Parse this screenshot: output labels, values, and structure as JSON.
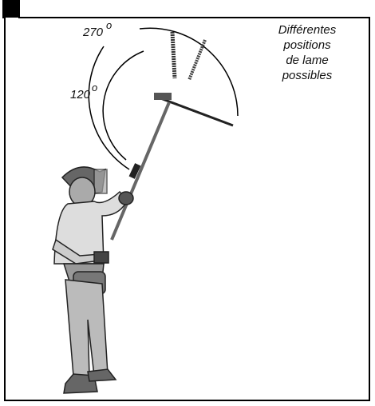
{
  "angles": [
    {
      "value": "270",
      "degree": "o"
    },
    {
      "value": "120",
      "degree": "o"
    }
  ],
  "caption": {
    "lines": [
      "Différentes",
      "positions",
      "de lame",
      "possibles"
    ]
  }
}
